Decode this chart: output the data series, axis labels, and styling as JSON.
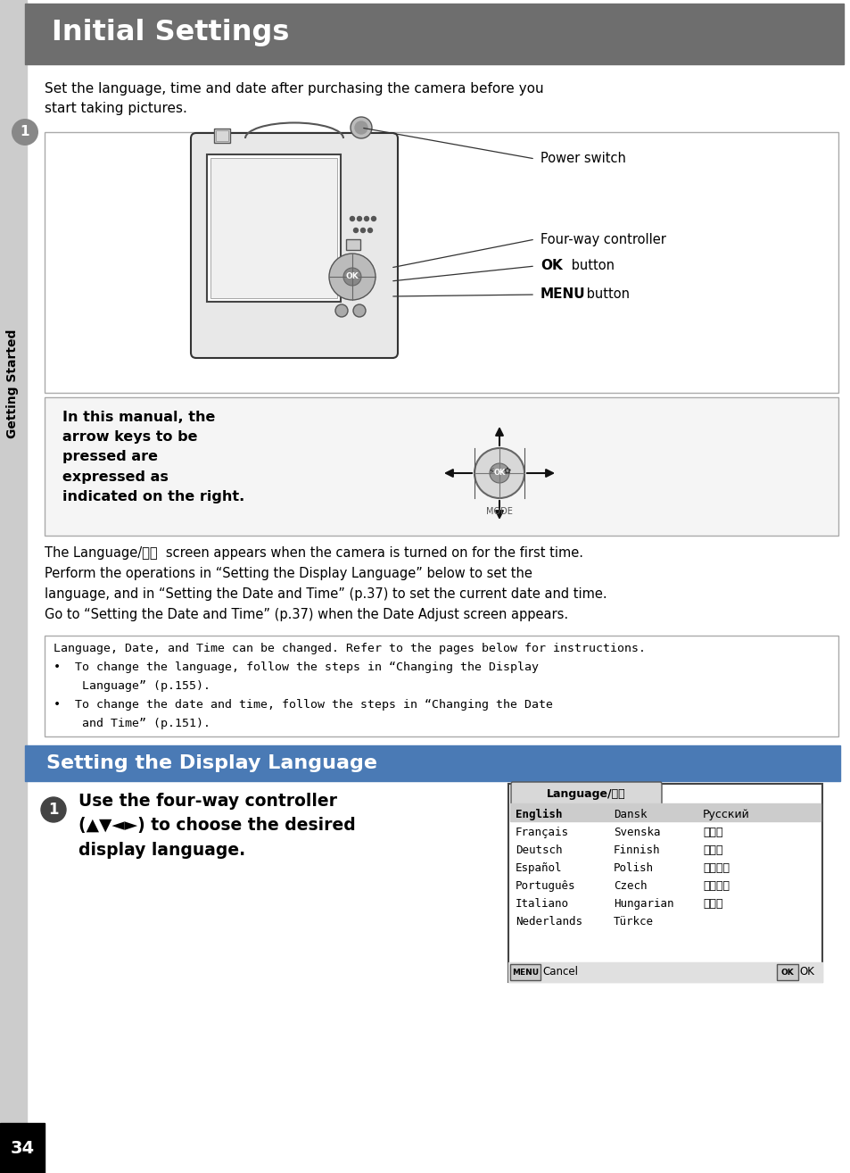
{
  "page_bg": "#ffffff",
  "header_bg": "#6e6e6e",
  "header_text": "Initial Settings",
  "header_text_color": "#ffffff",
  "sidebar_bg": "#cccccc",
  "sidebar_label": "Getting Started",
  "sidebar_num": "1",
  "section2_bg": "#4a7ab5",
  "section2_text": "Setting the Display Language",
  "intro_text": "Set the language, time and date after purchasing the camera before you\nstart taking pictures.",
  "power_switch_label": "Power switch",
  "four_way_label": "Four-way controller",
  "ok_bold": "OK",
  "ok_rest": " button",
  "menu_bold": "MENU",
  "menu_rest": " button",
  "manual_box_text_bold": "In this manual, the\narrow keys to be\npressed are\nexpressed as\nindicated on the right.",
  "body_text1_line1": "The Language/言語  screen appears when the camera is turned on for the first time.",
  "body_text1_line2": "Perform the operations in “Setting the Display Language” below to set the",
  "body_text1_line3": "language, and in “Setting the Date and Time” (p.37) to set the current date and time.",
  "body_text1_line4": "Go to “Setting the Date and Time” (p.37) when the Date Adjust screen appears.",
  "note_line1": "Language, Date, and Time can be changed. Refer to the pages below for instructions.",
  "note_line2": "•  To change the language, follow the steps in “Changing the Display",
  "note_line3": "    Language” (p.155).",
  "note_line4": "•  To change the date and time, follow the steps in “Changing the Date",
  "note_line5": "    and Time” (p.151).",
  "step1_bold": "Use the four-way controller\n(▲▼◄►) to choose the desired\ndisplay language.",
  "lang_screen_title": "Language/言語",
  "lang_col1": [
    "English",
    "Français",
    "Deutsch",
    "Español",
    "Português",
    "Italiano",
    "Nederlands"
  ],
  "lang_col2": [
    "Dansk",
    "Svenska",
    "Finnish",
    "Polish",
    "Czech",
    "Hungarian",
    "Türkce"
  ],
  "lang_col3": [
    "Русский",
    "ไทย",
    "한국어",
    "中文繁體",
    "中文简体",
    "日本語"
  ],
  "page_number": "34",
  "footer_bg": "#000000",
  "footer_text_color": "#ffffff"
}
